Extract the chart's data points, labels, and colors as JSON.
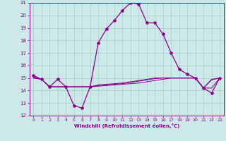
{
  "xlabel": "Windchill (Refroidissement éolien,°C)",
  "xlim": [
    -0.5,
    23.5
  ],
  "ylim": [
    12,
    21
  ],
  "yticks": [
    12,
    13,
    14,
    15,
    16,
    17,
    18,
    19,
    20,
    21
  ],
  "xticks": [
    0,
    1,
    2,
    3,
    4,
    5,
    6,
    7,
    8,
    9,
    10,
    11,
    12,
    13,
    14,
    15,
    16,
    17,
    18,
    19,
    20,
    21,
    22,
    23
  ],
  "bg_color": "#cce8e8",
  "grid_color": "#aacccc",
  "line_color": "#880088",
  "line1_x": [
    0,
    1,
    2,
    3,
    4,
    5,
    6,
    7,
    8,
    9,
    10,
    11,
    12,
    13,
    14,
    15,
    16,
    17,
    18,
    19,
    20,
    21,
    22,
    23
  ],
  "line1_y": [
    15.2,
    14.9,
    14.3,
    14.9,
    14.3,
    12.8,
    12.6,
    14.3,
    17.8,
    18.9,
    19.6,
    20.4,
    21.0,
    20.9,
    19.4,
    19.4,
    18.5,
    17.0,
    15.7,
    15.3,
    15.0,
    14.2,
    13.8,
    15.0
  ],
  "line2_x": [
    0,
    1,
    2,
    3,
    4,
    5,
    6,
    7,
    8,
    9,
    10,
    11,
    12,
    13,
    14,
    15,
    16,
    17,
    18,
    19,
    20,
    21,
    22,
    23
  ],
  "line2_y": [
    15.1,
    14.9,
    14.3,
    14.3,
    14.3,
    14.3,
    14.3,
    14.3,
    14.35,
    14.4,
    14.45,
    14.5,
    14.55,
    14.6,
    14.7,
    14.8,
    14.9,
    15.0,
    15.0,
    15.0,
    15.0,
    14.2,
    14.2,
    15.0
  ],
  "line3_x": [
    0,
    1,
    2,
    3,
    4,
    5,
    6,
    7,
    8,
    9,
    10,
    11,
    12,
    13,
    14,
    15,
    16,
    17,
    18,
    19,
    20,
    21,
    22,
    23
  ],
  "line3_y": [
    15.0,
    14.9,
    14.3,
    14.3,
    14.3,
    14.3,
    14.3,
    14.3,
    14.4,
    14.45,
    14.5,
    14.55,
    14.65,
    14.75,
    14.85,
    14.95,
    15.0,
    15.0,
    15.0,
    15.0,
    15.0,
    14.2,
    14.85,
    15.0
  ],
  "line4_x": [
    0,
    1,
    2,
    3,
    4,
    5,
    6,
    7,
    8,
    9,
    10,
    11,
    12,
    13,
    14,
    15,
    16,
    17,
    18,
    19,
    20,
    21,
    22,
    23
  ],
  "line4_y": [
    15.0,
    14.9,
    14.3,
    14.3,
    14.3,
    14.3,
    14.3,
    14.3,
    14.45,
    14.5,
    14.55,
    14.6,
    14.7,
    14.8,
    14.9,
    15.0,
    15.0,
    15.0,
    15.0,
    15.0,
    15.0,
    14.2,
    14.9,
    15.0
  ]
}
